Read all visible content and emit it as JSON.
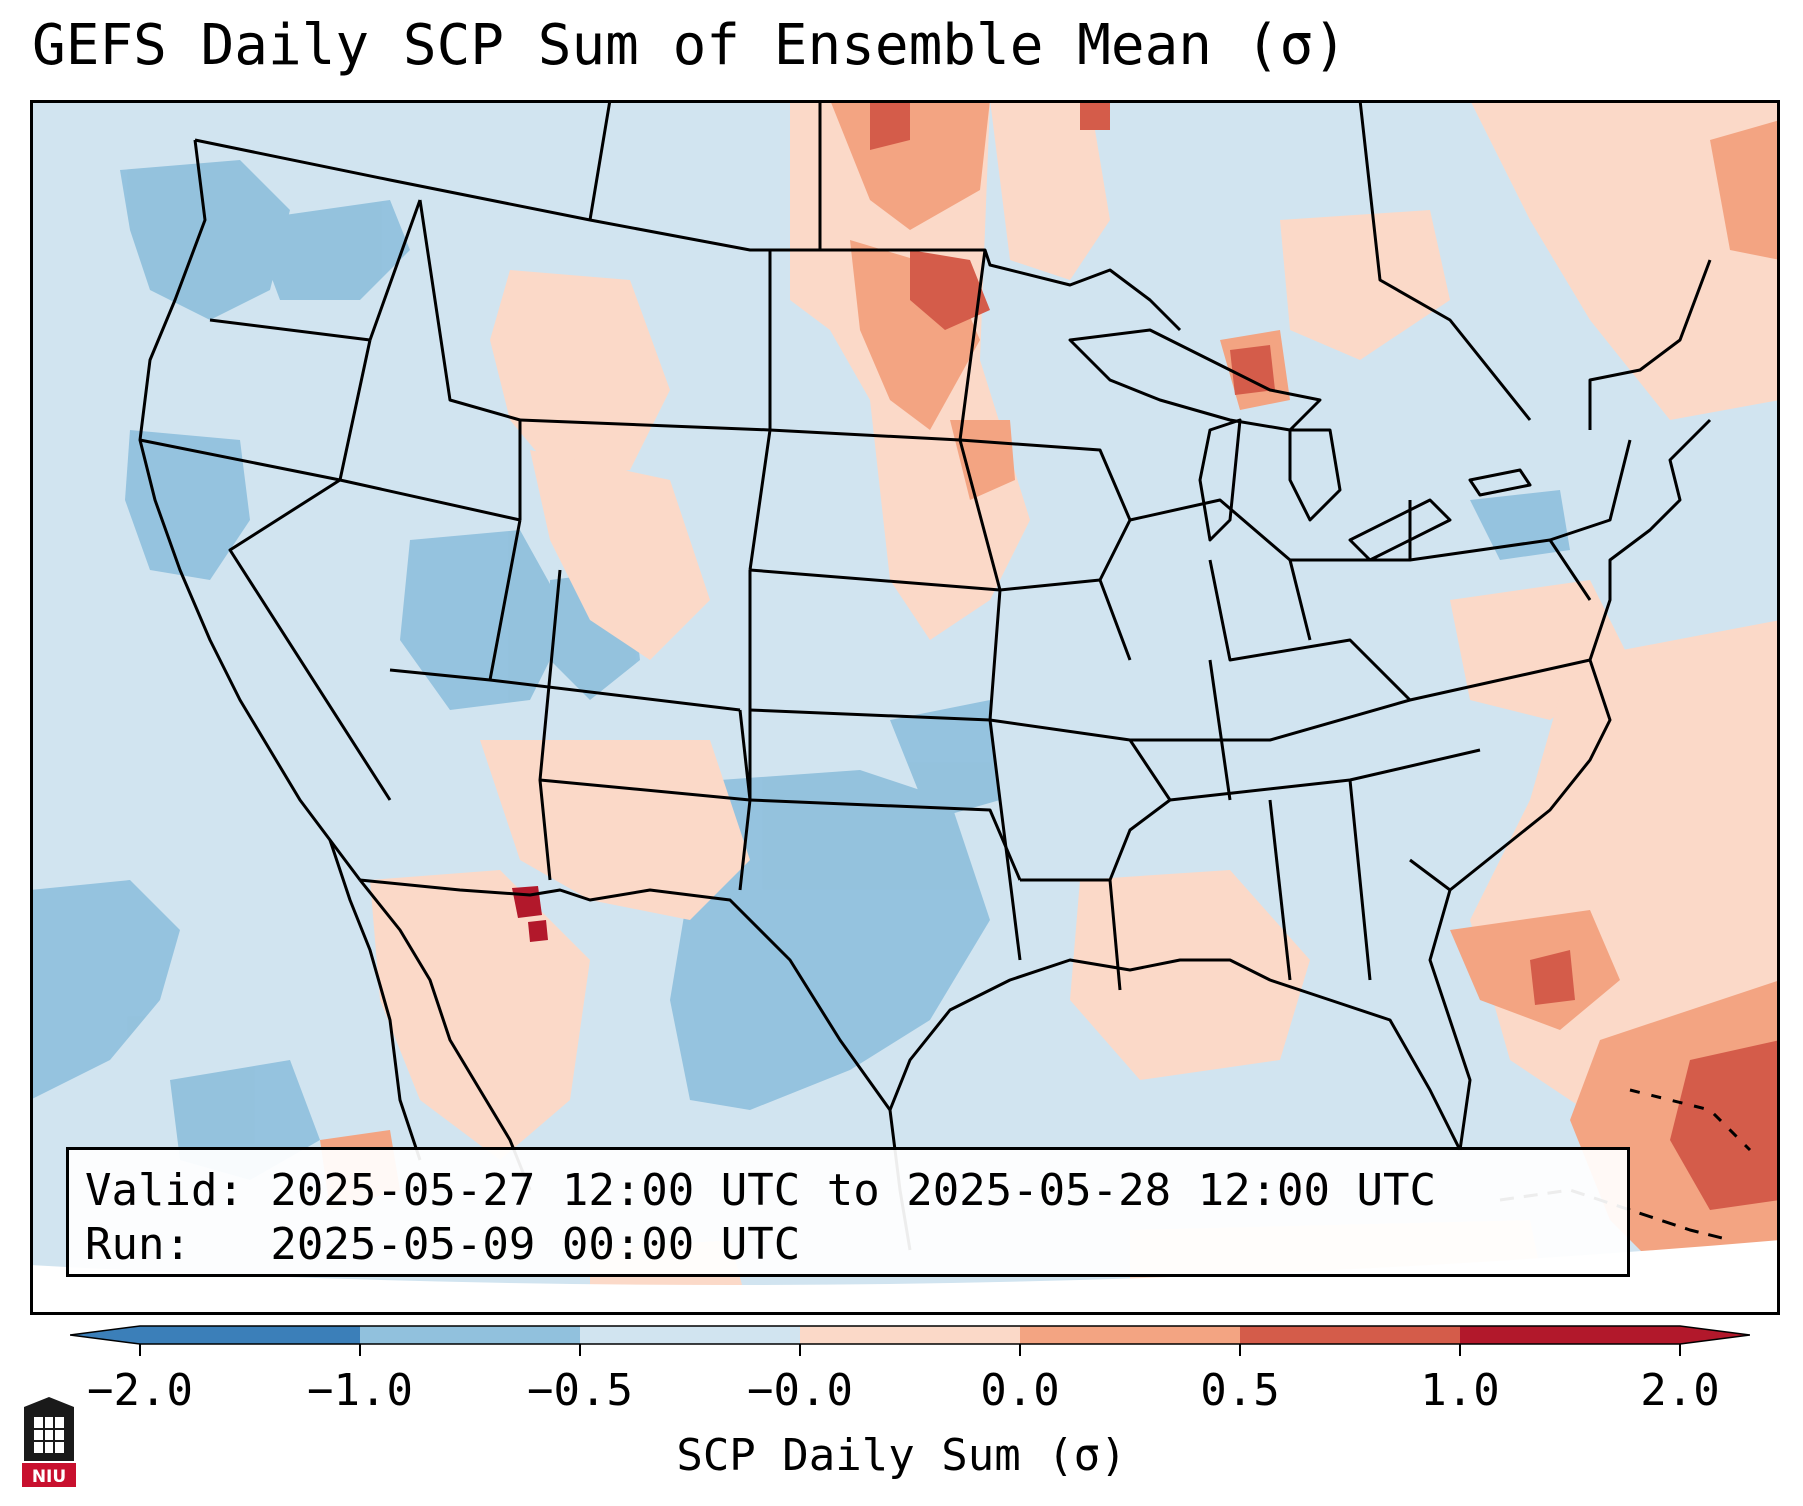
{
  "title": "GEFS Daily SCP Sum of Ensemble Mean (σ)",
  "info": {
    "valid_line": "Valid: 2025-05-27 12:00 UTC to 2025-05-28 12:00 UTC",
    "run_line": "Run:   2025-05-09 00:00 UTC"
  },
  "colorbar": {
    "label": "SCP Daily Sum (σ)",
    "ticks": [
      "−2.0",
      "−1.0",
      "−0.5",
      "−0.0",
      "0.0",
      "0.5",
      "1.0",
      "2.0"
    ],
    "colors": [
      "#3b7fb9",
      "#91c1dd",
      "#d1e4f0",
      "#fbd9c8",
      "#f3a482",
      "#d45c4a",
      "#b2182b"
    ],
    "extend": "both"
  },
  "map": {
    "background_color": "#d1e4f0",
    "extent": "Contiguous United States",
    "units": "σ"
  },
  "logo": {
    "text": "NIU"
  }
}
